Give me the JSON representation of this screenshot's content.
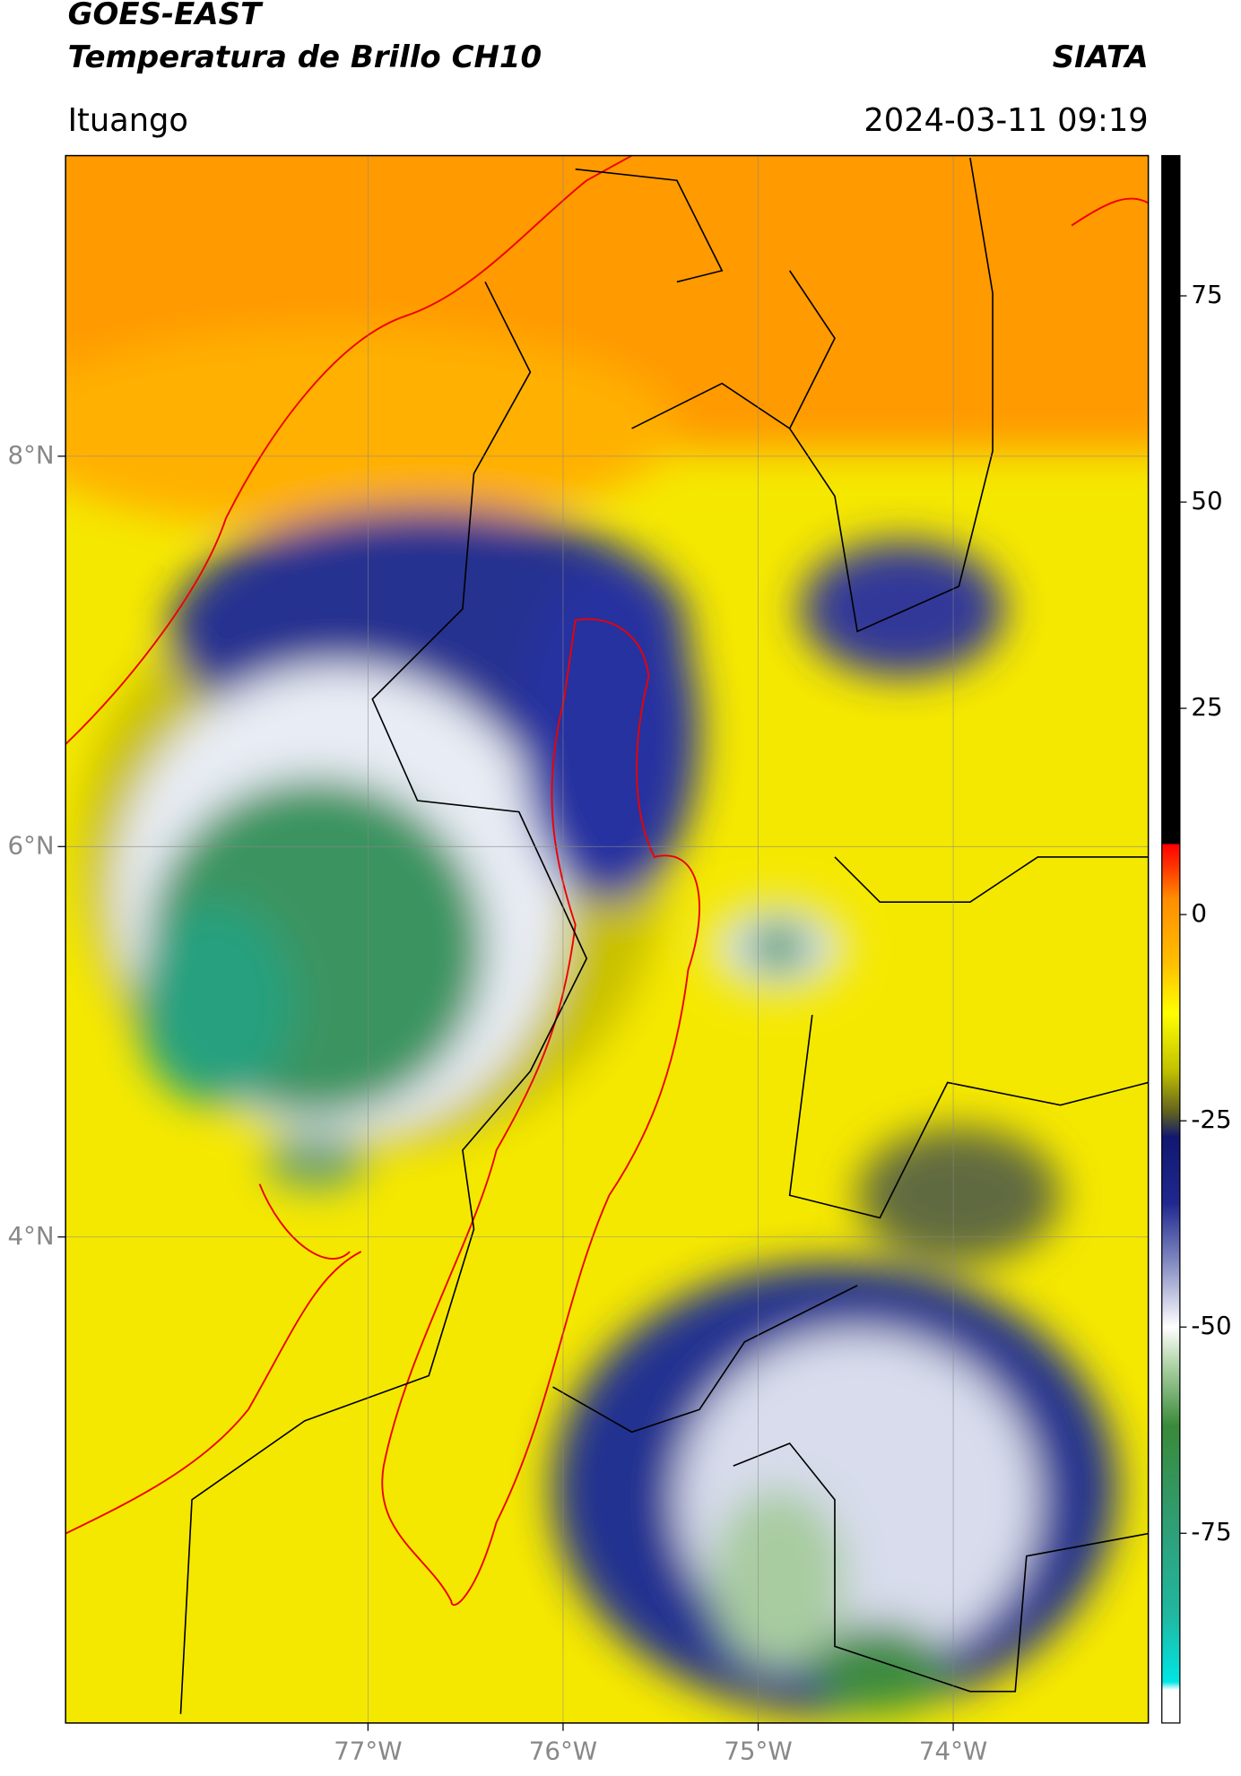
{
  "header": {
    "satellite": "GOES-EAST",
    "product": "Temperatura de Brillo CH10",
    "brand": "SIATA",
    "location": "Ituango",
    "datetime": "2024-03-11 09:19"
  },
  "map": {
    "xlim": [
      -78.55,
      -73.0
    ],
    "ylim": [
      1.51,
      9.54
    ],
    "xticks": [
      {
        "value": -77,
        "label": "77°W"
      },
      {
        "value": -76,
        "label": "76°W"
      },
      {
        "value": -75,
        "label": "75°W"
      },
      {
        "value": -74,
        "label": "74°W"
      }
    ],
    "yticks": [
      {
        "value": 4,
        "label": "4°N"
      },
      {
        "value": 6,
        "label": "6°N"
      },
      {
        "value": 8,
        "label": "8°N"
      }
    ],
    "grid": true
  },
  "colorbar": {
    "lim": [
      -98,
      92
    ],
    "ticks": [
      -75,
      -50,
      -25,
      0,
      25,
      50,
      75
    ],
    "stops": [
      [
        -98,
        "#ffffff"
      ],
      [
        -94,
        "#ffffff"
      ],
      [
        -93,
        "#00e5e5"
      ],
      [
        -85,
        "#20b8a0"
      ],
      [
        -75,
        "#2ea07a"
      ],
      [
        -62,
        "#3a8a3a"
      ],
      [
        -55,
        "#a8cfa0"
      ],
      [
        -50,
        "#ffffff"
      ],
      [
        -42,
        "#8088c0"
      ],
      [
        -35,
        "#202890"
      ],
      [
        -27,
        "#101870"
      ],
      [
        -24,
        "#606020"
      ],
      [
        -19,
        "#c0c000"
      ],
      [
        -12,
        "#ffff00"
      ],
      [
        -6,
        "#ffc000"
      ],
      [
        2,
        "#ff8c00"
      ],
      [
        6,
        "#ff3000"
      ],
      [
        8.5,
        "#ff0000"
      ],
      [
        8.6,
        "#000000"
      ],
      [
        92,
        "#000000"
      ]
    ]
  }
}
